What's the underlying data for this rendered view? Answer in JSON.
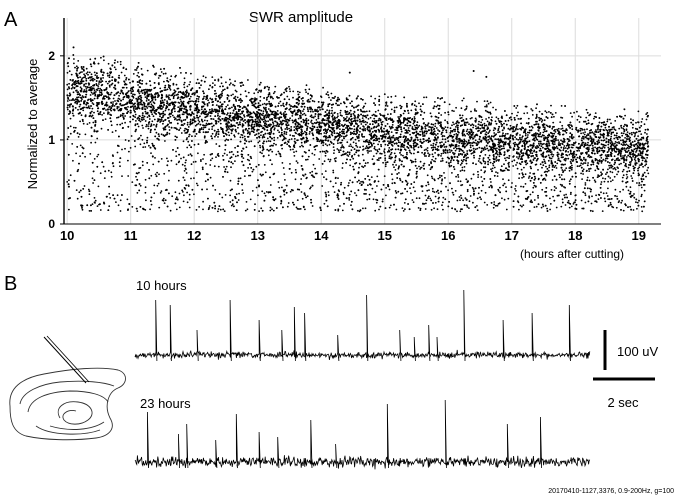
{
  "panels": {
    "a_letter": "A",
    "b_letter": "B"
  },
  "chart_data": [
    {
      "type": "scatter",
      "title": "SWR amplitude",
      "ylabel": "Normalized to average",
      "xlabel": "(hours after cutting)",
      "xlim": [
        9.95,
        19.35
      ],
      "ylim": [
        0,
        2.45
      ],
      "x_ticks": [
        10,
        11,
        12,
        13,
        14,
        15,
        16,
        17,
        18,
        19
      ],
      "y_ticks": [
        0,
        1,
        2
      ],
      "grid": true,
      "marker_color": "#000000",
      "x_range_points": [
        10,
        19.15
      ],
      "trend": {
        "x": [
          10,
          11,
          12,
          13,
          14,
          15,
          16,
          17,
          18,
          19.15
        ],
        "y": [
          1.6,
          1.48,
          1.36,
          1.26,
          1.18,
          1.11,
          1.05,
          1.0,
          0.96,
          0.92
        ]
      },
      "floor_y": 0.15,
      "upper_envelope": {
        "x": [
          10,
          11,
          12,
          13,
          14,
          15,
          16,
          17,
          18,
          19.15
        ],
        "y": [
          2.05,
          1.95,
          1.8,
          1.7,
          1.6,
          1.55,
          1.5,
          1.45,
          1.4,
          1.35
        ]
      }
    },
    {
      "type": "line",
      "traces": [
        {
          "label": "10 hours",
          "spike_x": [
            0.1,
            0.06,
            0.175,
            0.09,
            0.15,
            0.09,
            0.055,
            0.04,
            0.03
          ],
          "spike_times": [
            0.5,
            0.85,
            1.5,
            2.3,
            3.0,
            3.55,
            3.85,
            4.1,
            4.9,
            5.6,
            6.4,
            6.75,
            7.1,
            7.3,
            7.95,
            8.9,
            9.6,
            10.5
          ],
          "spike_heights": [
            55,
            50,
            25,
            55,
            35,
            25,
            48,
            42,
            20,
            60,
            25,
            18,
            30,
            18,
            65,
            35,
            42,
            50
          ]
        },
        {
          "label": "23 hours",
          "spike_times": [
            0.3,
            1.05,
            1.25,
            1.95,
            2.45,
            3.0,
            3.45,
            4.25,
            4.85,
            6.1,
            7.5,
            9.0,
            9.8
          ],
          "spike_heights": [
            50,
            28,
            38,
            22,
            48,
            30,
            25,
            42,
            18,
            58,
            62,
            38,
            45
          ]
        }
      ],
      "scalebar_amplitude": "100 uV",
      "scalebar_time": "2 sec",
      "footnote": "20170410-1127,3376, 0.9-200Hz, g=100"
    }
  ]
}
